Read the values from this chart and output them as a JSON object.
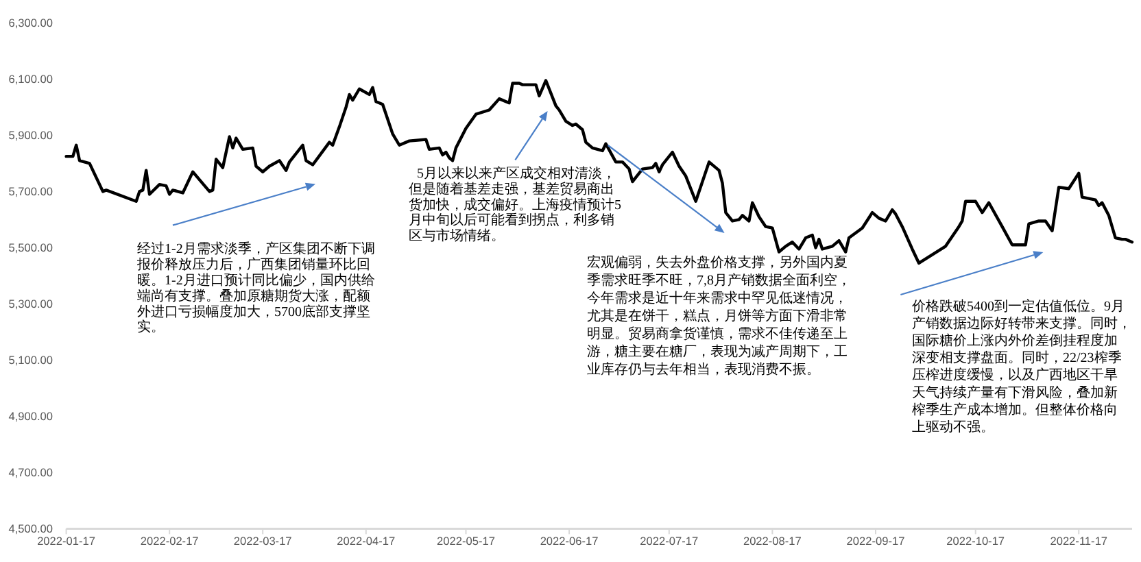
{
  "chart_data": {
    "type": "line",
    "x": [
      "2022-01-17",
      "2022-01-19",
      "2022-01-20",
      "2022-01-21",
      "2022-01-24",
      "2022-01-28",
      "2022-01-29",
      "2022-02-07",
      "2022-02-08",
      "2022-02-09",
      "2022-02-10",
      "2022-02-11",
      "2022-02-14",
      "2022-02-16",
      "2022-02-17",
      "2022-02-18",
      "2022-02-21",
      "2022-02-24",
      "2022-03-01",
      "2022-03-02",
      "2022-03-03",
      "2022-03-05",
      "2022-03-07",
      "2022-03-08",
      "2022-03-09",
      "2022-03-11",
      "2022-03-14",
      "2022-03-15",
      "2022-03-17",
      "2022-03-19",
      "2022-03-22",
      "2022-03-24",
      "2022-03-25",
      "2022-03-29",
      "2022-03-30",
      "2022-04-01",
      "2022-04-06",
      "2022-04-07",
      "2022-04-09",
      "2022-04-11",
      "2022-04-12",
      "2022-04-13",
      "2022-04-15",
      "2022-04-18",
      "2022-04-19",
      "2022-04-20",
      "2022-04-22",
      "2022-04-25",
      "2022-04-27",
      "2022-04-30",
      "2022-05-05",
      "2022-05-06",
      "2022-05-09",
      "2022-05-10",
      "2022-05-11",
      "2022-05-12",
      "2022-05-13",
      "2022-05-14",
      "2022-05-17",
      "2022-05-20",
      "2022-05-24",
      "2022-05-27",
      "2022-05-30",
      "2022-05-31",
      "2022-06-02",
      "2022-06-03",
      "2022-06-07",
      "2022-06-08",
      "2022-06-10",
      "2022-06-13",
      "2022-06-14",
      "2022-06-16",
      "2022-06-18",
      "2022-06-19",
      "2022-06-21",
      "2022-06-22",
      "2022-06-24",
      "2022-06-27",
      "2022-06-28",
      "2022-07-01",
      "2022-07-03",
      "2022-07-05",
      "2022-07-06",
      "2022-07-09",
      "2022-07-12",
      "2022-07-13",
      "2022-07-14",
      "2022-07-15",
      "2022-07-18",
      "2022-07-20",
      "2022-07-22",
      "2022-07-25",
      "2022-07-29",
      "2022-08-01",
      "2022-08-02",
      "2022-08-03",
      "2022-08-05",
      "2022-08-07",
      "2022-08-08",
      "2022-08-10",
      "2022-08-11",
      "2022-08-13",
      "2022-08-15",
      "2022-08-17",
      "2022-08-19",
      "2022-08-21",
      "2022-08-23",
      "2022-08-25",
      "2022-08-27",
      "2022-08-29",
      "2022-08-30",
      "2022-08-31",
      "2022-09-01",
      "2022-09-04",
      "2022-09-06",
      "2022-09-08",
      "2022-09-09",
      "2022-09-13",
      "2022-09-16",
      "2022-09-18",
      "2022-09-20",
      "2022-09-22",
      "2022-09-23",
      "2022-09-25",
      "2022-09-28",
      "2022-09-30",
      "2022-10-08",
      "2022-10-12",
      "2022-10-13",
      "2022-10-14",
      "2022-10-17",
      "2022-10-19",
      "2022-10-21",
      "2022-10-25",
      "2022-10-28",
      "2022-11-01",
      "2022-11-02",
      "2022-11-05",
      "2022-11-07",
      "2022-11-09",
      "2022-11-11",
      "2022-11-14",
      "2022-11-17",
      "2022-11-18",
      "2022-11-22",
      "2022-11-23",
      "2022-11-24",
      "2022-11-26",
      "2022-11-28",
      "2022-11-30",
      "2022-12-01",
      "2022-12-03"
    ],
    "series": [
      {
        "color": "#000000",
        "values": [
          5825,
          5825,
          5865,
          5810,
          5800,
          5700,
          5705,
          5665,
          5700,
          5705,
          5775,
          5690,
          5725,
          5720,
          5690,
          5705,
          5695,
          5770,
          5700,
          5705,
          5815,
          5785,
          5895,
          5855,
          5890,
          5850,
          5855,
          5790,
          5770,
          5790,
          5810,
          5775,
          5805,
          5865,
          5810,
          5795,
          5875,
          5865,
          5930,
          6000,
          6045,
          6025,
          6065,
          6045,
          6070,
          6020,
          6010,
          5905,
          5865,
          5880,
          5885,
          5850,
          5855,
          5830,
          5840,
          5820,
          5810,
          5855,
          5925,
          5975,
          5990,
          6030,
          6015,
          6085,
          6085,
          6080,
          6080,
          6040,
          6095,
          6005,
          5990,
          5950,
          5935,
          5940,
          5920,
          5875,
          5855,
          5845,
          5870,
          5805,
          5805,
          5780,
          5735,
          5780,
          5785,
          5800,
          5770,
          5795,
          5840,
          5790,
          5755,
          5665,
          5805,
          5775,
          5730,
          5625,
          5595,
          5600,
          5615,
          5595,
          5660,
          5610,
          5575,
          5570,
          5485,
          5505,
          5520,
          5495,
          5535,
          5545,
          5500,
          5530,
          5495,
          5505,
          5525,
          5485,
          5535,
          5570,
          5625,
          5605,
          5595,
          5635,
          5620,
          5575,
          5495,
          5445,
          5505,
          5575,
          5595,
          5665,
          5665,
          5625,
          5660,
          5575,
          5510,
          5510,
          5585,
          5595,
          5595,
          5560,
          5715,
          5710,
          5765,
          5680,
          5670,
          5650,
          5660,
          5615,
          5535,
          5530,
          5530,
          5520
        ]
      }
    ],
    "xlim": [
      "2022-01-17",
      "2022-12-03"
    ],
    "xticks": [
      "2022-01-17",
      "2022-02-17",
      "2022-03-17",
      "2022-04-17",
      "2022-05-17",
      "2022-06-17",
      "2022-07-17",
      "2022-08-17",
      "2022-09-17",
      "2022-10-17",
      "2022-11-17"
    ],
    "ylim": [
      4500,
      6300
    ],
    "yticks": [
      {
        "value": 4500,
        "label": "4,500.00"
      },
      {
        "value": 4700,
        "label": "4,700.00"
      },
      {
        "value": 4900,
        "label": "4,900.00"
      },
      {
        "value": 5100,
        "label": "5,100.00"
      },
      {
        "value": 5300,
        "label": "5,300.00"
      },
      {
        "value": 5500,
        "label": "5,500.00"
      },
      {
        "value": 5700,
        "label": "5,700.00"
      },
      {
        "value": 5900,
        "label": "5,900.00"
      },
      {
        "value": 6100,
        "label": "6,100.00"
      },
      {
        "value": 6300,
        "label": "6,300.00"
      }
    ],
    "annotations": [
      "经过1-2月需求淡季，产区集团不断下调报价释放压力后，广西集团销量环比回暖。1-2月进口预计同比偏少，国内供给端尚有支撑。叠加原糖期货大涨，配额外进口亏损幅度加大，5700底部支撑坚实。",
      "5月以来以来产区成交相对清淡，但是随着基差走强，基差贸易商出货加快，成交偏好。上海疫情预计5月中旬以后可能看到拐点，利多销区与市场情绪。",
      "宏观偏弱，失去外盘价格支撑，另外国内夏季需求旺季不旺，7,8月产销数据全面利空，今年需求是近十年来需求中罕见低迷情况，尤其是在饼干，糕点，月饼等方面下滑非常明显。贸易商拿货谨慎，需求不佳传递至上游，糖主要在糖厂，表现为减产周期下，工业库存仍与去年相当，表现消费不振。",
      "价格跌破5400到一定估值低位。9月产销数据边际好转带来支撑。同时，国际糖价上涨内外价差倒挂程度加深变相支撑盘面。同时，22/23榨季压榨进度缓慢，以及广西地区干旱天气持续产量有下滑风险，叠加新榨季生产成本增加。但整体价格向上驱动不强。"
    ]
  }
}
